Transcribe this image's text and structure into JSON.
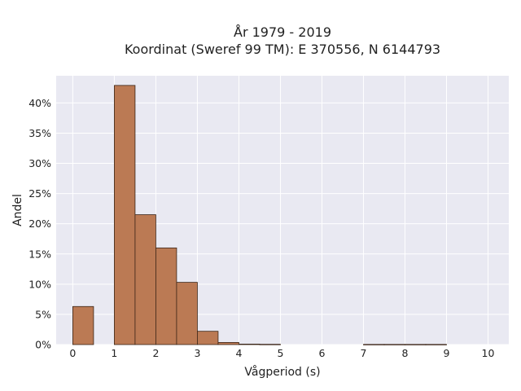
{
  "chart_data": {
    "type": "bar",
    "title_lines": [
      "År 1979 - 2019",
      "Koordinat (Sweref 99 TM): E 370556, N 6144793"
    ],
    "xlabel": "Vågperiod (s)",
    "ylabel": "Andel",
    "xlim": [
      -0.4,
      10.5
    ],
    "ylim": [
      0,
      44.5
    ],
    "x_ticks": [
      0,
      1,
      2,
      3,
      4,
      5,
      6,
      7,
      8,
      9,
      10
    ],
    "y_ticks": [
      0,
      5,
      10,
      15,
      20,
      25,
      30,
      35,
      40
    ],
    "y_tick_labels": [
      "0%",
      "5%",
      "10%",
      "15%",
      "20%",
      "25%",
      "30%",
      "35%",
      "40%"
    ],
    "bar_width": 0.5,
    "bins": [
      {
        "x": 0.0,
        "value": 6.3
      },
      {
        "x": 1.0,
        "value": 42.9
      },
      {
        "x": 1.5,
        "value": 21.5
      },
      {
        "x": 2.0,
        "value": 16.0
      },
      {
        "x": 2.5,
        "value": 10.3
      },
      {
        "x": 3.0,
        "value": 2.2
      },
      {
        "x": 3.5,
        "value": 0.35
      },
      {
        "x": 4.0,
        "value": 0.08
      },
      {
        "x": 4.5,
        "value": 0.05
      },
      {
        "x": 7.0,
        "value": 0.03
      },
      {
        "x": 7.5,
        "value": 0.03
      },
      {
        "x": 8.0,
        "value": 0.03
      },
      {
        "x": 8.5,
        "value": 0.03
      }
    ],
    "grid": true,
    "colors": {
      "bar": "#bb7a54",
      "bar_edge": "#3a2416",
      "plot_bg": "#e9e9f2",
      "grid": "#ffffff"
    }
  }
}
